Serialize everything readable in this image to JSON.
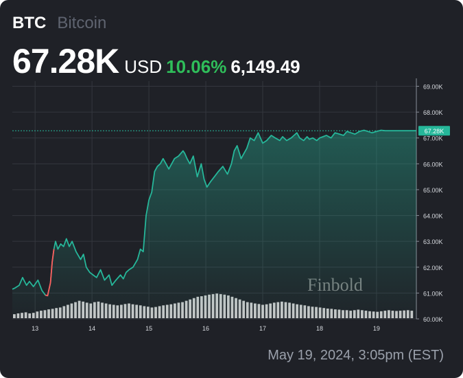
{
  "header": {
    "symbol": "BTC",
    "name": "Bitcoin",
    "price": "67.28K",
    "currency": "USD",
    "change_pct": "10.06%",
    "change_abs": "6,149.49"
  },
  "footer": {
    "timestamp": "May 19, 2024, 3:05pm (EST)"
  },
  "watermark": "Finbold",
  "colors": {
    "background": "#1f2127",
    "line": "#26b79a",
    "line_down": "#ff5b5b",
    "positive": "#2fbe5a",
    "volume": "#d6d6d6",
    "grid": "#34373e"
  },
  "chart_data": {
    "type": "area",
    "title": "",
    "xlabel": "",
    "ylabel": "",
    "x_ticks": [
      "13",
      "14",
      "15",
      "16",
      "17",
      "18",
      "19"
    ],
    "x_range": [
      12.6,
      19.7
    ],
    "y_ticks": [
      "69.00K",
      "68.00K",
      "67.00K",
      "66.00K",
      "65.00K",
      "64.00K",
      "63.00K",
      "62.00K",
      "61.00K",
      "60.00K"
    ],
    "y_tick_values": [
      69000,
      68000,
      67000,
      66000,
      65000,
      64000,
      63000,
      62000,
      61000,
      60000
    ],
    "ylim": [
      60000,
      69200
    ],
    "current_value": 67280,
    "current_label": "67.28K",
    "grid": true,
    "series": [
      {
        "color_role": "line",
        "x": [
          12.6,
          12.65,
          12.72,
          12.78,
          12.85,
          12.9,
          12.97,
          13.05,
          13.12,
          13.18,
          13.22,
          13.27,
          13.3,
          13.33,
          13.36,
          13.4,
          13.45,
          13.5,
          13.55,
          13.6,
          13.65,
          13.72,
          13.8,
          13.85,
          13.9,
          13.96,
          14.02,
          14.08,
          14.15,
          14.22,
          14.3,
          14.35,
          14.42,
          14.5,
          14.55,
          14.6,
          14.65,
          14.72,
          14.8,
          14.85,
          14.9,
          14.95,
          15.0,
          15.05,
          15.1,
          15.15,
          15.2,
          15.25,
          15.3,
          15.35,
          15.4,
          15.45,
          15.52,
          15.6,
          15.63,
          15.67,
          15.72,
          15.78,
          15.85,
          15.92,
          15.97,
          16.02,
          16.08,
          16.15,
          16.22,
          16.3,
          16.38,
          16.45,
          16.5,
          16.55,
          16.62,
          16.67,
          16.72,
          16.78,
          16.85,
          16.92,
          17.0,
          17.07,
          17.15,
          17.22,
          17.3,
          17.35,
          17.42,
          17.5,
          17.55,
          17.6,
          17.65,
          17.72,
          17.78,
          17.82,
          17.88,
          17.95,
          18.0,
          18.06,
          18.12,
          18.2,
          18.27,
          18.35,
          18.42,
          18.48,
          18.55,
          18.62,
          18.7,
          18.78,
          18.85,
          18.92,
          19.0,
          19.08,
          19.15,
          19.22,
          19.3,
          19.38,
          19.45,
          19.52,
          19.6,
          19.66,
          19.7
        ],
        "y": [
          61150,
          61200,
          61300,
          61600,
          61300,
          61450,
          61250,
          61500,
          61100,
          60920,
          60900,
          61400,
          62200,
          62700,
          63000,
          62700,
          62900,
          62800,
          63100,
          62800,
          63000,
          62600,
          62300,
          62500,
          62000,
          61800,
          61700,
          61600,
          61900,
          61500,
          61700,
          61300,
          61500,
          61700,
          61550,
          61800,
          61900,
          62000,
          62300,
          62700,
          62600,
          64000,
          64600,
          64900,
          65700,
          65900,
          66000,
          66200,
          66000,
          65800,
          66000,
          66200,
          66300,
          66500,
          66400,
          66200,
          66000,
          66300,
          65500,
          66000,
          65400,
          65100,
          65300,
          65500,
          65700,
          65900,
          65600,
          66000,
          66500,
          66700,
          66200,
          66400,
          66600,
          67000,
          66900,
          67200,
          66800,
          66900,
          67100,
          67000,
          66900,
          67050,
          66900,
          67000,
          67100,
          67200,
          67000,
          66900,
          67050,
          66950,
          67000,
          66900,
          67000,
          67050,
          67100,
          67000,
          67200,
          67150,
          67100,
          67250,
          67200,
          67150,
          67250,
          67300,
          67250,
          67200,
          67250,
          67300,
          67280,
          67280,
          67280,
          67280,
          67280,
          67280,
          67280,
          67280,
          67280
        ]
      }
    ],
    "down_segment_x_range": [
      13.18,
      13.33
    ],
    "volume": [
      0.15,
      0.18,
      0.2,
      0.22,
      0.18,
      0.2,
      0.25,
      0.28,
      0.3,
      0.33,
      0.35,
      0.38,
      0.4,
      0.45,
      0.5,
      0.55,
      0.6,
      0.65,
      0.62,
      0.58,
      0.55,
      0.6,
      0.62,
      0.58,
      0.55,
      0.52,
      0.5,
      0.48,
      0.5,
      0.53,
      0.55,
      0.52,
      0.5,
      0.48,
      0.45,
      0.43,
      0.4,
      0.42,
      0.45,
      0.48,
      0.5,
      0.52,
      0.55,
      0.58,
      0.6,
      0.65,
      0.7,
      0.75,
      0.8,
      0.82,
      0.85,
      0.88,
      0.9,
      0.92,
      0.9,
      0.88,
      0.85,
      0.8,
      0.75,
      0.7,
      0.65,
      0.6,
      0.58,
      0.55,
      0.53,
      0.5,
      0.52,
      0.55,
      0.58,
      0.6,
      0.62,
      0.6,
      0.58,
      0.55,
      0.52,
      0.5,
      0.48,
      0.45,
      0.43,
      0.42,
      0.4,
      0.38,
      0.36,
      0.35,
      0.33,
      0.32,
      0.3,
      0.3,
      0.28,
      0.3,
      0.32,
      0.3,
      0.28,
      0.26,
      0.25,
      0.24,
      0.26,
      0.28,
      0.3,
      0.28,
      0.27,
      0.28,
      0.29,
      0.3,
      0.28
    ]
  }
}
